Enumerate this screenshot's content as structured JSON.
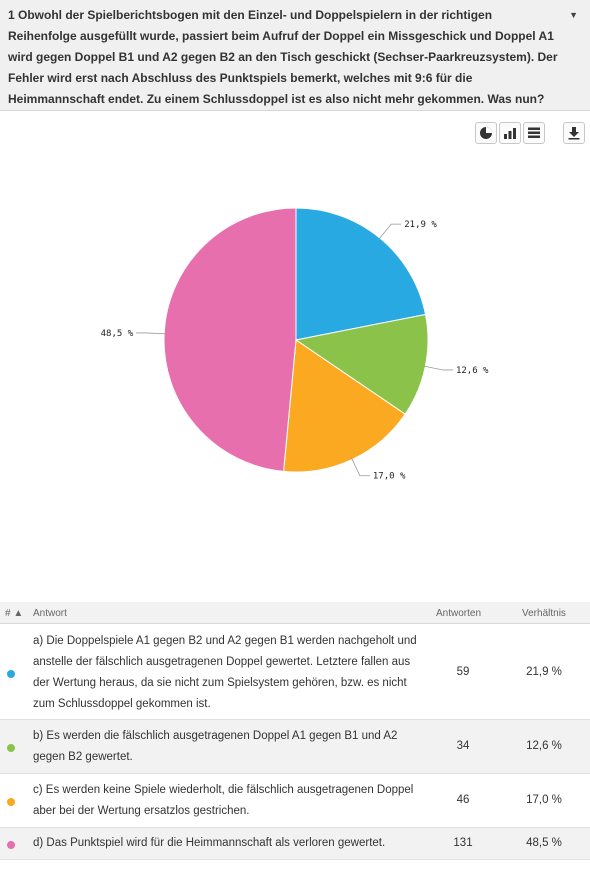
{
  "question": {
    "text": "1 Obwohl der Spielberichtsbogen mit den Einzel- und Doppelspielern in der richtigen Reihenfolge ausgefüllt wurde, passiert beim Aufruf der Doppel ein Missgeschick und Doppel A1 wird gegen Doppel B1 und A2 gegen B2 an den Tisch geschickt (Sechser-Paarkreuzsystem). Der Fehler wird erst nach Abschluss des Punktspiels bemerkt, welches mit 9:6 für die Heimmannschaft endet. Zu einem Schlussdoppel ist es also nicht mehr gekommen. Was nun?",
    "toggle_icon": "caret-down-icon"
  },
  "toolbar": {
    "buttons": [
      "pie-chart-icon",
      "bar-chart-icon",
      "table-icon",
      "download-icon"
    ]
  },
  "chart_data": {
    "type": "pie",
    "categories": [
      "a",
      "b",
      "c",
      "d"
    ],
    "values": [
      21.9,
      12.6,
      17.0,
      48.5
    ],
    "labels": [
      "21,9 %",
      "12,6 %",
      "17,0 %",
      "48,5 %"
    ],
    "colors": [
      "#29a9e1",
      "#8bc34a",
      "#fba921",
      "#e86fae"
    ],
    "start_angle_deg": 0,
    "direction": "clockwise"
  },
  "table": {
    "headers": {
      "sort": "# ▲",
      "answer": "Antwort",
      "count": "Antworten",
      "ratio": "Verhältnis"
    },
    "rows": [
      {
        "text": "a) Die Doppelspiele A1 gegen B2 und A2 gegen B1 werden nachgeholt und anstelle der fälschlich ausgetragenen Doppel gewertet. Letztere fallen aus der Wertung heraus, da sie nicht zum Spielsystem gehören, bzw. es nicht zum Schlussdoppel gekommen ist.",
        "count": "59",
        "ratio": "21,9 %",
        "color": "#29a9e1"
      },
      {
        "text": "b) Es werden die fälschlich ausgetragenen Doppel A1 gegen B1 und A2 gegen B2 gewertet.",
        "count": "34",
        "ratio": "12,6 %",
        "color": "#8bc34a"
      },
      {
        "text": "c) Es werden keine Spiele wiederholt, die fälschlich ausgetragenen Doppel aber bei der Wertung ersatzlos gestrichen.",
        "count": "46",
        "ratio": "17,0 %",
        "color": "#fba921"
      },
      {
        "text": "d) Das Punktspiel wird für die Heimmannschaft als verloren gewertet.",
        "count": "131",
        "ratio": "48,5 %",
        "color": "#e86fae"
      }
    ]
  }
}
